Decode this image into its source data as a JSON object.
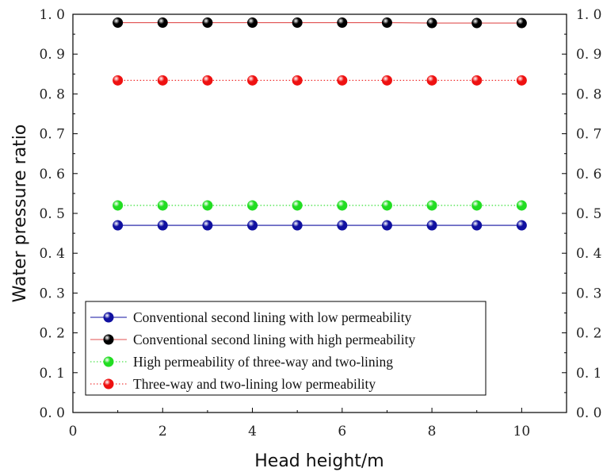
{
  "chart_data": {
    "type": "line",
    "xlabel": "Head height/m",
    "ylabel": "Water pressure ratio",
    "xlim": [
      0,
      11
    ],
    "ylim": [
      0,
      1.0
    ],
    "x_ticks": [
      "0",
      "2",
      "4",
      "6",
      "8",
      "10"
    ],
    "x_tick_values": [
      0,
      2,
      4,
      6,
      8,
      10
    ],
    "y_ticks": [
      "0. 0",
      "0. 1",
      "0. 2",
      "0. 3",
      "0. 4",
      "0. 5",
      "0. 6",
      "0. 7",
      "0. 8",
      "0. 9",
      "1. 0"
    ],
    "y_tick_values": [
      0,
      0.1,
      0.2,
      0.3,
      0.4,
      0.5,
      0.6,
      0.7,
      0.8,
      0.9,
      1.0
    ],
    "grid": false,
    "legend_position": "bottom-left",
    "x": [
      1,
      2,
      3,
      4,
      5,
      6,
      7,
      8,
      9,
      10
    ],
    "series": [
      {
        "name": "Conventional second lining with low permeability",
        "values": [
          0.47,
          0.47,
          0.47,
          0.47,
          0.47,
          0.47,
          0.47,
          0.47,
          0.47,
          0.47
        ],
        "color": "#1010a0",
        "line_color": "#1010a0",
        "dash": "solid"
      },
      {
        "name": "Conventional second lining with high permeability",
        "values": [
          0.979,
          0.979,
          0.979,
          0.979,
          0.979,
          0.979,
          0.979,
          0.978,
          0.978,
          0.978
        ],
        "color": "#000000",
        "line_color": "#e05050",
        "dash": "solid"
      },
      {
        "name": "High permeability of three-way and two-lining",
        "values": [
          0.52,
          0.52,
          0.52,
          0.52,
          0.52,
          0.52,
          0.52,
          0.52,
          0.52,
          0.52
        ],
        "color": "#22dd22",
        "line_color": "#22dd22",
        "dash": "dotted"
      },
      {
        "name": "Three-way and two-lining low permeability",
        "values": [
          0.834,
          0.834,
          0.834,
          0.834,
          0.834,
          0.834,
          0.834,
          0.834,
          0.834,
          0.834
        ],
        "color": "#ee1111",
        "line_color": "#ee1111",
        "dash": "dotted"
      }
    ]
  }
}
